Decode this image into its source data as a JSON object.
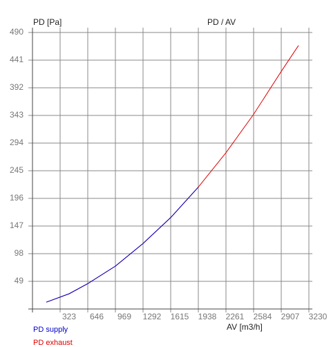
{
  "chart_data": {
    "type": "line",
    "title": "PD / AV",
    "y_label": "PD [Pa]",
    "x_label": "AV [m3/h]",
    "x": [
      161,
      428,
      646,
      969,
      1292,
      1615,
      1938,
      2261,
      2584,
      2907,
      3109
    ],
    "series": [
      {
        "name": "PD supply",
        "color": "#0000cc",
        "values": [
          12,
          27,
          45,
          76,
          116,
          162,
          216,
          null,
          null,
          null,
          null
        ]
      },
      {
        "name": "PD exhaust",
        "color": "#dd0000",
        "values": [
          12,
          27,
          45,
          76,
          116,
          162,
          216,
          277,
          345,
          421,
          467
        ]
      }
    ],
    "xlim": [
      0,
      3230
    ],
    "xticks": [
      323,
      646,
      969,
      1292,
      1615,
      1938,
      2261,
      2584,
      2907,
      3230
    ],
    "ylim": [
      0,
      490
    ],
    "yticks": [
      49,
      98,
      147,
      196,
      245,
      294,
      343,
      392,
      441,
      490
    ],
    "grid": true
  }
}
